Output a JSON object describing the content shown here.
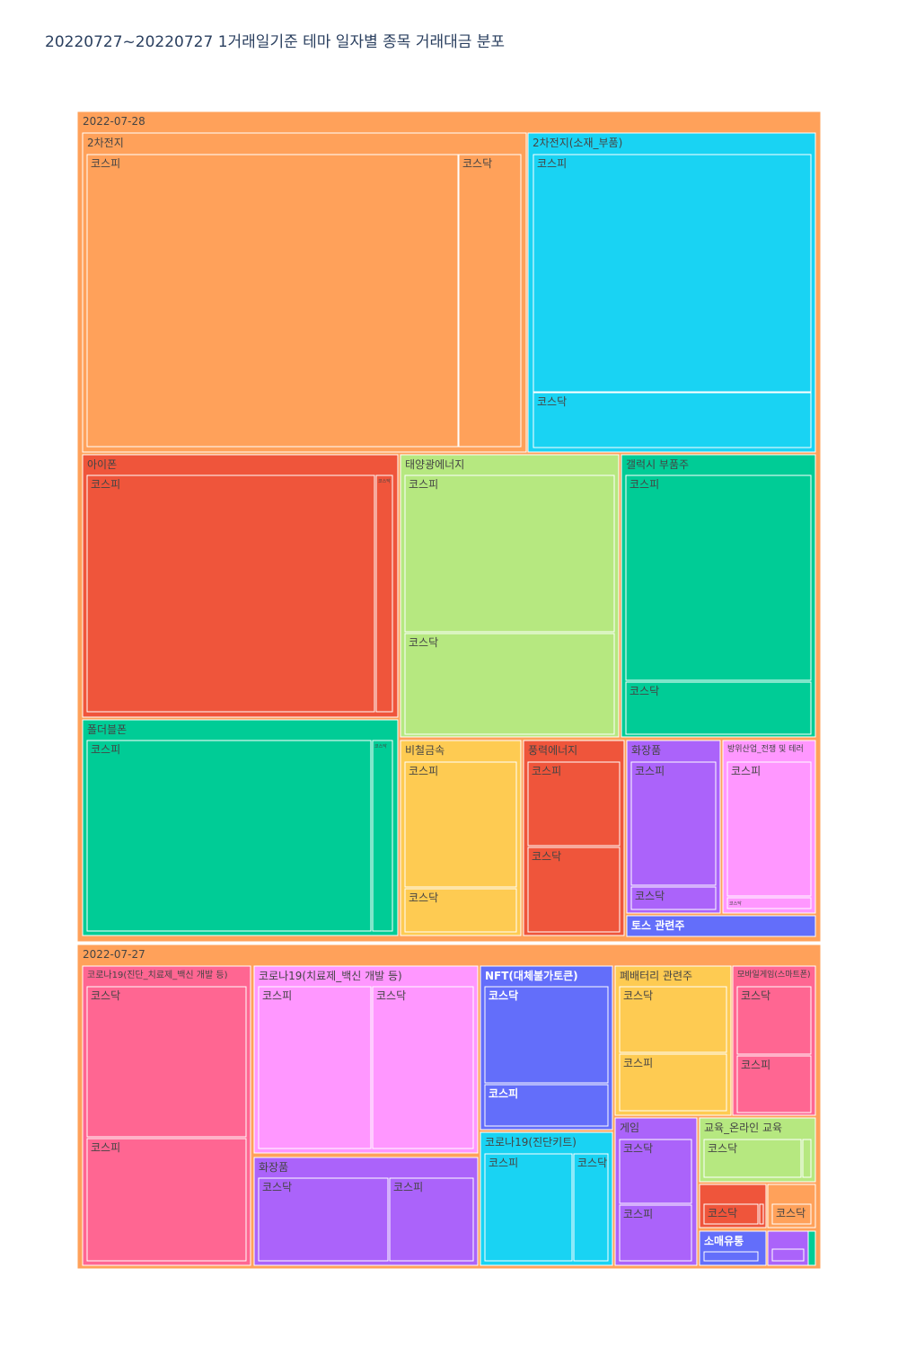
{
  "chart_data": {
    "type": "treemap",
    "title": "20220727~20220727 1거래일기준 테마 일자별 종목 거래대금 분포",
    "colors": {
      "date": "#FFA15A",
      "orange": "#FFA15A",
      "cyan": "#19D3F3",
      "red": "#EF553B",
      "lime": "#B6E880",
      "green": "#00CC96",
      "yellow": "#FECB52",
      "purple": "#AB63FA",
      "pink": "#FF97FF",
      "blue": "#636EFA",
      "rose": "#FF6692"
    },
    "dates": [
      {
        "label": "2022-07-28",
        "themes": [
          {
            "name": "2차전지",
            "color": "orange",
            "markets": [
              {
                "name": "코스피"
              },
              {
                "name": "코스닥"
              }
            ]
          },
          {
            "name": "2차전지(소재_부품)",
            "color": "cyan",
            "markets": [
              {
                "name": "코스피"
              },
              {
                "name": "코스닥"
              }
            ]
          },
          {
            "name": "아이폰",
            "color": "red",
            "markets": [
              {
                "name": "코스피"
              },
              {
                "name": "코스닥"
              }
            ]
          },
          {
            "name": "태양광에너지",
            "color": "lime",
            "markets": [
              {
                "name": "코스피"
              },
              {
                "name": "코스닥"
              }
            ]
          },
          {
            "name": "갤럭시 부품주",
            "color": "green",
            "markets": [
              {
                "name": "코스피"
              },
              {
                "name": "코스닥"
              }
            ]
          },
          {
            "name": "폴더블폰",
            "color": "green",
            "markets": [
              {
                "name": "코스피"
              },
              {
                "name": "코스닥"
              }
            ]
          },
          {
            "name": "비철금속",
            "color": "yellow",
            "markets": [
              {
                "name": "코스피"
              },
              {
                "name": "코스닥"
              }
            ]
          },
          {
            "name": "풍력에너지",
            "color": "red",
            "markets": [
              {
                "name": "코스피"
              },
              {
                "name": "코스닥"
              }
            ]
          },
          {
            "name": "화장품",
            "color": "purple",
            "markets": [
              {
                "name": "코스피"
              },
              {
                "name": "코스닥"
              }
            ]
          },
          {
            "name": "방위산업_전쟁 및 테러",
            "color": "pink",
            "markets": [
              {
                "name": "코스피"
              },
              {
                "name": "코스닥"
              }
            ]
          },
          {
            "name": "토스 관련주",
            "color": "blue",
            "markets": []
          }
        ]
      },
      {
        "label": "2022-07-27",
        "themes": [
          {
            "name": "코로나19(진단_치료제_백신 개발 등)",
            "color": "rose",
            "markets": [
              {
                "name": "코스닥"
              },
              {
                "name": "코스피"
              }
            ]
          },
          {
            "name": "코로나19(치료제_백신 개발 등)",
            "color": "pink",
            "markets": [
              {
                "name": "코스피"
              },
              {
                "name": "코스닥"
              }
            ]
          },
          {
            "name": "NFT(대체불가토큰)",
            "color": "blue",
            "markets": [
              {
                "name": "코스닥"
              },
              {
                "name": "코스피"
              }
            ]
          },
          {
            "name": "폐배터리 관련주",
            "color": "yellow",
            "markets": [
              {
                "name": "코스닥"
              },
              {
                "name": "코스피"
              }
            ]
          },
          {
            "name": "모바일게임(스마트폰)",
            "color": "rose",
            "markets": [
              {
                "name": "코스닥"
              },
              {
                "name": "코스피"
              }
            ]
          },
          {
            "name": "화장품",
            "color": "purple",
            "markets": [
              {
                "name": "코스닥"
              },
              {
                "name": "코스피"
              }
            ]
          },
          {
            "name": "코로나19(진단키트)",
            "color": "cyan",
            "markets": [
              {
                "name": "코스피"
              },
              {
                "name": "코스닥"
              }
            ]
          },
          {
            "name": "게임",
            "color": "purple",
            "markets": [
              {
                "name": "코스닥"
              },
              {
                "name": "코스피"
              }
            ]
          },
          {
            "name": "교육_온라인 교육",
            "color": "lime",
            "markets": [
              {
                "name": "코스닥"
              },
              {
                "name": ""
              }
            ]
          },
          {
            "name": "",
            "color": "red",
            "markets": [
              {
                "name": "코스닥"
              },
              {
                "name": ""
              }
            ]
          },
          {
            "name": "",
            "color": "orange",
            "markets": [
              {
                "name": "코스닥"
              }
            ]
          },
          {
            "name": "소매유통",
            "color": "blue",
            "markets": [
              {
                "name": ""
              }
            ]
          },
          {
            "name": "",
            "color": "purple",
            "markets": [
              {
                "name": ""
              }
            ]
          },
          {
            "name": "",
            "color": "green",
            "markets": []
          }
        ]
      }
    ]
  }
}
